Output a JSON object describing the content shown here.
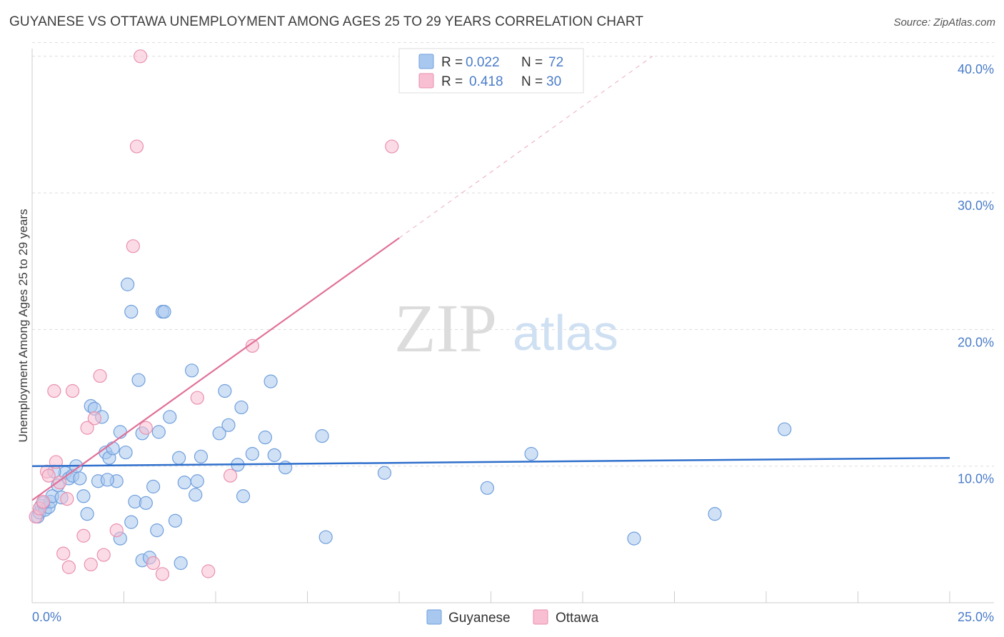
{
  "header": {
    "title": "GUYANESE VS OTTAWA UNEMPLOYMENT AMONG AGES 25 TO 29 YEARS CORRELATION CHART",
    "source": "Source: ZipAtlas.com"
  },
  "watermark": {
    "zip": "ZIP",
    "atlas": "atlas"
  },
  "colors": {
    "guyanese_fill": "#a9c8ef",
    "guyanese_stroke": "#6f9fdc",
    "guyanese_line": "#2f6fcc",
    "ottawa_fill": "#f7bfd1",
    "ottawa_stroke": "#ea8fae",
    "ottawa_line": "#e07099",
    "label_blue": "#4a7cc9"
  },
  "stats_legend": [
    {
      "series": "Guyanese",
      "r_label": "R =",
      "r_value": "0.022",
      "n_label": "N =",
      "n_value": "72"
    },
    {
      "series": "Ottawa",
      "r_label": "R =",
      "r_value": "0.418",
      "n_label": "N =",
      "n_value": "30"
    }
  ],
  "chart_data": {
    "type": "scatter",
    "title": "GUYANESE VS OTTAWA UNEMPLOYMENT AMONG AGES 25 TO 29 YEARS CORRELATION CHART",
    "xlabel": "",
    "ylabel": "Unemployment Among Ages 25 to 29 years",
    "xlim": [
      0,
      25
    ],
    "ylim": [
      0,
      41
    ],
    "x_tick_labels": [
      "0.0%",
      "25.0%"
    ],
    "y_ticks": [
      10,
      20,
      30,
      40
    ],
    "y_tick_labels": [
      "10.0%",
      "20.0%",
      "30.0%",
      "40.0%"
    ],
    "legend": [
      "Guyanese",
      "Ottawa"
    ],
    "legend_position": "bottom-center",
    "series": [
      {
        "name": "Guyanese",
        "trend": {
          "x": [
            0,
            25
          ],
          "y": [
            10.0,
            10.6
          ],
          "dashed_extension": false
        },
        "points": [
          [
            0.15,
            6.3
          ],
          [
            0.2,
            6.6
          ],
          [
            0.25,
            7.1
          ],
          [
            0.35,
            6.8
          ],
          [
            0.45,
            7.0
          ],
          [
            0.5,
            7.4
          ],
          [
            0.55,
            7.8
          ],
          [
            0.7,
            8.6
          ],
          [
            0.9,
            9.5
          ],
          [
            1.0,
            9.1
          ],
          [
            1.1,
            9.3
          ],
          [
            1.3,
            9.1
          ],
          [
            1.4,
            7.8
          ],
          [
            1.5,
            6.5
          ],
          [
            1.6,
            14.4
          ],
          [
            1.7,
            14.2
          ],
          [
            1.9,
            13.6
          ],
          [
            1.8,
            8.9
          ],
          [
            2.0,
            11.0
          ],
          [
            2.1,
            10.6
          ],
          [
            2.2,
            11.3
          ],
          [
            2.3,
            8.9
          ],
          [
            2.4,
            12.5
          ],
          [
            2.55,
            11.0
          ],
          [
            2.4,
            4.7
          ],
          [
            2.6,
            23.3
          ],
          [
            2.7,
            21.3
          ],
          [
            2.7,
            5.9
          ],
          [
            2.8,
            7.4
          ],
          [
            2.9,
            16.3
          ],
          [
            3.0,
            12.4
          ],
          [
            3.0,
            3.1
          ],
          [
            3.1,
            7.3
          ],
          [
            3.2,
            3.3
          ],
          [
            3.3,
            8.5
          ],
          [
            3.4,
            5.3
          ],
          [
            3.45,
            12.5
          ],
          [
            3.55,
            21.3
          ],
          [
            3.6,
            21.3
          ],
          [
            3.75,
            13.6
          ],
          [
            3.9,
            6.0
          ],
          [
            4.0,
            10.6
          ],
          [
            4.05,
            2.9
          ],
          [
            4.15,
            8.8
          ],
          [
            4.35,
            17.0
          ],
          [
            4.45,
            7.9
          ],
          [
            4.5,
            8.9
          ],
          [
            4.6,
            10.7
          ],
          [
            5.1,
            12.4
          ],
          [
            5.25,
            15.5
          ],
          [
            5.35,
            13.0
          ],
          [
            5.6,
            10.1
          ],
          [
            5.7,
            14.3
          ],
          [
            5.75,
            7.8
          ],
          [
            6.0,
            10.9
          ],
          [
            6.35,
            12.1
          ],
          [
            6.5,
            16.2
          ],
          [
            6.6,
            10.8
          ],
          [
            6.9,
            9.9
          ],
          [
            7.9,
            12.2
          ],
          [
            8.0,
            4.8
          ],
          [
            9.6,
            9.5
          ],
          [
            12.4,
            8.4
          ],
          [
            13.6,
            10.9
          ],
          [
            16.4,
            4.7
          ],
          [
            18.6,
            6.5
          ],
          [
            20.5,
            12.7
          ],
          [
            0.3,
            7.3
          ],
          [
            1.2,
            10.0
          ],
          [
            0.8,
            7.7
          ],
          [
            0.6,
            9.6
          ],
          [
            2.05,
            9.0
          ]
        ]
      },
      {
        "name": "Ottawa",
        "trend": {
          "x": [
            0,
            10
          ],
          "y": [
            7.5,
            26.7
          ],
          "dashed_extension": true,
          "dashed_to": {
            "x": 16.9,
            "y": 40.0
          }
        },
        "points": [
          [
            0.1,
            6.3
          ],
          [
            0.2,
            6.9
          ],
          [
            0.3,
            7.4
          ],
          [
            0.4,
            9.6
          ],
          [
            0.45,
            9.3
          ],
          [
            0.6,
            15.5
          ],
          [
            0.65,
            10.3
          ],
          [
            0.75,
            8.8
          ],
          [
            0.85,
            3.6
          ],
          [
            0.95,
            7.6
          ],
          [
            1.0,
            2.6
          ],
          [
            1.1,
            15.5
          ],
          [
            1.4,
            4.9
          ],
          [
            1.5,
            12.8
          ],
          [
            1.6,
            2.8
          ],
          [
            1.7,
            13.5
          ],
          [
            1.85,
            16.6
          ],
          [
            1.95,
            3.5
          ],
          [
            2.3,
            5.3
          ],
          [
            2.75,
            26.1
          ],
          [
            2.85,
            33.4
          ],
          [
            2.95,
            40.0
          ],
          [
            3.1,
            12.8
          ],
          [
            3.3,
            2.9
          ],
          [
            3.55,
            2.1
          ],
          [
            4.5,
            15.0
          ],
          [
            4.8,
            2.3
          ],
          [
            5.4,
            9.3
          ],
          [
            6.0,
            18.8
          ],
          [
            9.8,
            33.4
          ]
        ]
      }
    ]
  }
}
